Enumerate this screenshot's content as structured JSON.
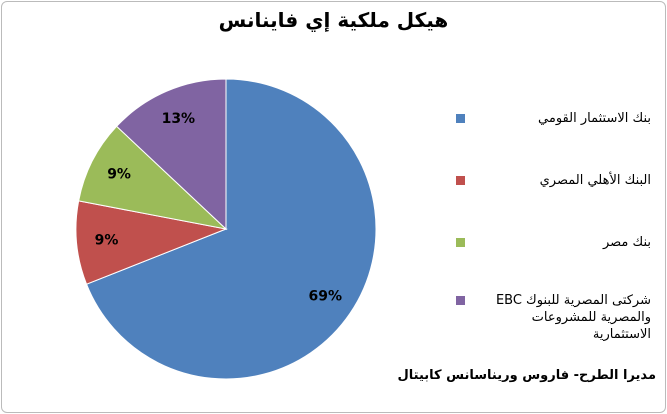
{
  "chart_data": {
    "type": "pie",
    "title": "هيكل ملكية إي فاينانس",
    "categories": [
      "بنك الاستثمار القومي",
      "البنك الأهلي المصري",
      "بنك مصر",
      "شركتى المصرية للبنوك EBC والمصرية للمشروعات الاستثمارية"
    ],
    "values": [
      69,
      9,
      9,
      13
    ],
    "value_labels": [
      "69%",
      "9%",
      "9%",
      "13%"
    ],
    "colors": [
      "#4f81bd",
      "#c0504d",
      "#9bbb59",
      "#8064a2"
    ],
    "annotation": "مديرا الطرح- فاروس وريناسانس كابيتال"
  }
}
